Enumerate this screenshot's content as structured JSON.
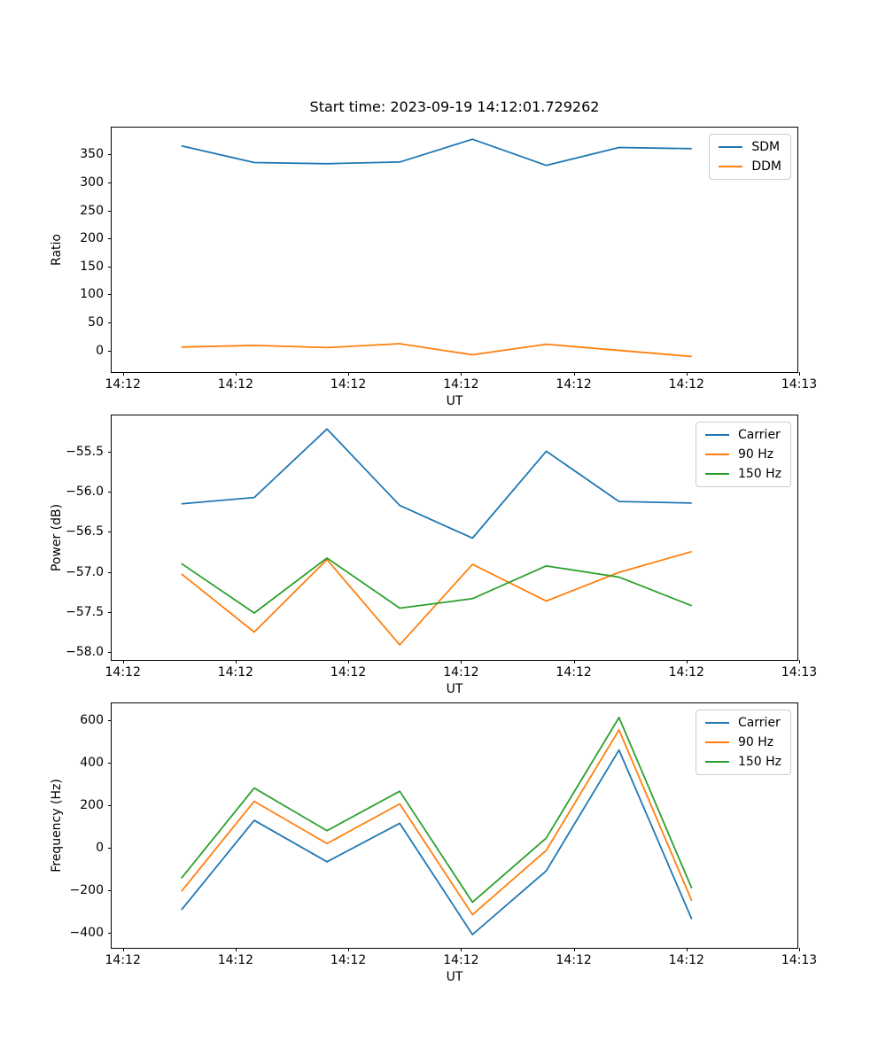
{
  "figure": {
    "title": "Start time: 2023-09-19 14:12:01.729262",
    "colors": {
      "blue": "#1f77b4",
      "orange": "#ff7f0e",
      "green": "#2ca02c"
    }
  },
  "chart_data": [
    {
      "type": "line",
      "ylabel": "Ratio",
      "xlabel": "UT",
      "x_seconds": [
        5.1,
        11.6,
        18.1,
        24.6,
        31.1,
        37.7,
        44.2,
        50.7
      ],
      "xlim_seconds": [
        -1.0,
        60.0
      ],
      "xticks": {
        "seconds": [
          0,
          10,
          20,
          30,
          40,
          50,
          60
        ],
        "labels": [
          "14:12",
          "14:12",
          "14:12",
          "14:12",
          "14:12",
          "14:12",
          "14:13"
        ]
      },
      "ylim": [
        -42,
        398
      ],
      "yticks": [
        {
          "value": 0,
          "label": "0"
        },
        {
          "value": 50,
          "label": "50"
        },
        {
          "value": 100,
          "label": "100"
        },
        {
          "value": 150,
          "label": "150"
        },
        {
          "value": 200,
          "label": "200"
        },
        {
          "value": 250,
          "label": "250"
        },
        {
          "value": 300,
          "label": "300"
        },
        {
          "value": 350,
          "label": "350"
        }
      ],
      "legend_position": "upper right",
      "grid": false,
      "series": [
        {
          "name": "SDM",
          "color": "#1f77b4",
          "values": [
            365,
            335,
            333,
            336,
            377,
            330,
            362,
            360
          ]
        },
        {
          "name": "DDM",
          "color": "#ff7f0e",
          "values": [
            3,
            6,
            2,
            9,
            -11,
            8,
            -3,
            -14
          ]
        }
      ]
    },
    {
      "type": "line",
      "ylabel": "Power (dB)",
      "xlabel": "UT",
      "x_seconds": [
        5.1,
        11.6,
        18.1,
        24.6,
        31.1,
        37.7,
        44.2,
        50.7
      ],
      "xlim_seconds": [
        -1.0,
        60.0
      ],
      "xticks": {
        "seconds": [
          0,
          10,
          20,
          30,
          40,
          50,
          60
        ],
        "labels": [
          "14:12",
          "14:12",
          "14:12",
          "14:12",
          "14:12",
          "14:12",
          "14:13"
        ]
      },
      "ylim": [
        -58.12,
        -55.05
      ],
      "yticks": [
        {
          "value": -58.0,
          "label": "−58.0"
        },
        {
          "value": -57.5,
          "label": "−57.5"
        },
        {
          "value": -57.0,
          "label": "−57.0"
        },
        {
          "value": -56.5,
          "label": "−56.5"
        },
        {
          "value": -56.0,
          "label": "−56.0"
        },
        {
          "value": -55.5,
          "label": "−55.5"
        }
      ],
      "legend_position": "upper right",
      "grid": false,
      "series": [
        {
          "name": "Carrier",
          "color": "#1f77b4",
          "values": [
            -56.16,
            -56.08,
            -55.22,
            -56.18,
            -56.59,
            -55.5,
            -56.13,
            -56.15
          ]
        },
        {
          "name": "90 Hz",
          "color": "#ff7f0e",
          "values": [
            -57.04,
            -57.77,
            -56.86,
            -57.93,
            -56.92,
            -57.38,
            -57.02,
            -56.76
          ]
        },
        {
          "name": "150 Hz",
          "color": "#2ca02c",
          "values": [
            -56.91,
            -57.53,
            -56.84,
            -57.47,
            -57.35,
            -56.94,
            -57.08,
            -57.44
          ]
        }
      ]
    },
    {
      "type": "line",
      "ylabel": "Frequency (Hz)",
      "xlabel": "UT",
      "x_seconds": [
        5.1,
        11.6,
        18.1,
        24.6,
        31.1,
        37.7,
        44.2,
        50.7
      ],
      "xlim_seconds": [
        -1.0,
        60.0
      ],
      "xticks": {
        "seconds": [
          0,
          10,
          20,
          30,
          40,
          50,
          60
        ],
        "labels": [
          "14:12",
          "14:12",
          "14:12",
          "14:12",
          "14:12",
          "14:12",
          "14:13"
        ]
      },
      "ylim": [
        -480,
        678
      ],
      "yticks": [
        {
          "value": -400,
          "label": "−400"
        },
        {
          "value": -200,
          "label": "−200"
        },
        {
          "value": 0,
          "label": "0"
        },
        {
          "value": 200,
          "label": "200"
        },
        {
          "value": 400,
          "label": "400"
        },
        {
          "value": 600,
          "label": "600"
        }
      ],
      "legend_position": "upper right",
      "grid": false,
      "series": [
        {
          "name": "Carrier",
          "color": "#1f77b4",
          "values": [
            -300,
            124,
            -72,
            110,
            -417,
            -115,
            457,
            -344
          ]
        },
        {
          "name": "90 Hz",
          "color": "#ff7f0e",
          "values": [
            -212,
            214,
            14,
            202,
            -323,
            -18,
            552,
            -257
          ]
        },
        {
          "name": "150 Hz",
          "color": "#2ca02c",
          "values": [
            -150,
            277,
            75,
            262,
            -264,
            40,
            611,
            -198
          ]
        }
      ]
    }
  ]
}
